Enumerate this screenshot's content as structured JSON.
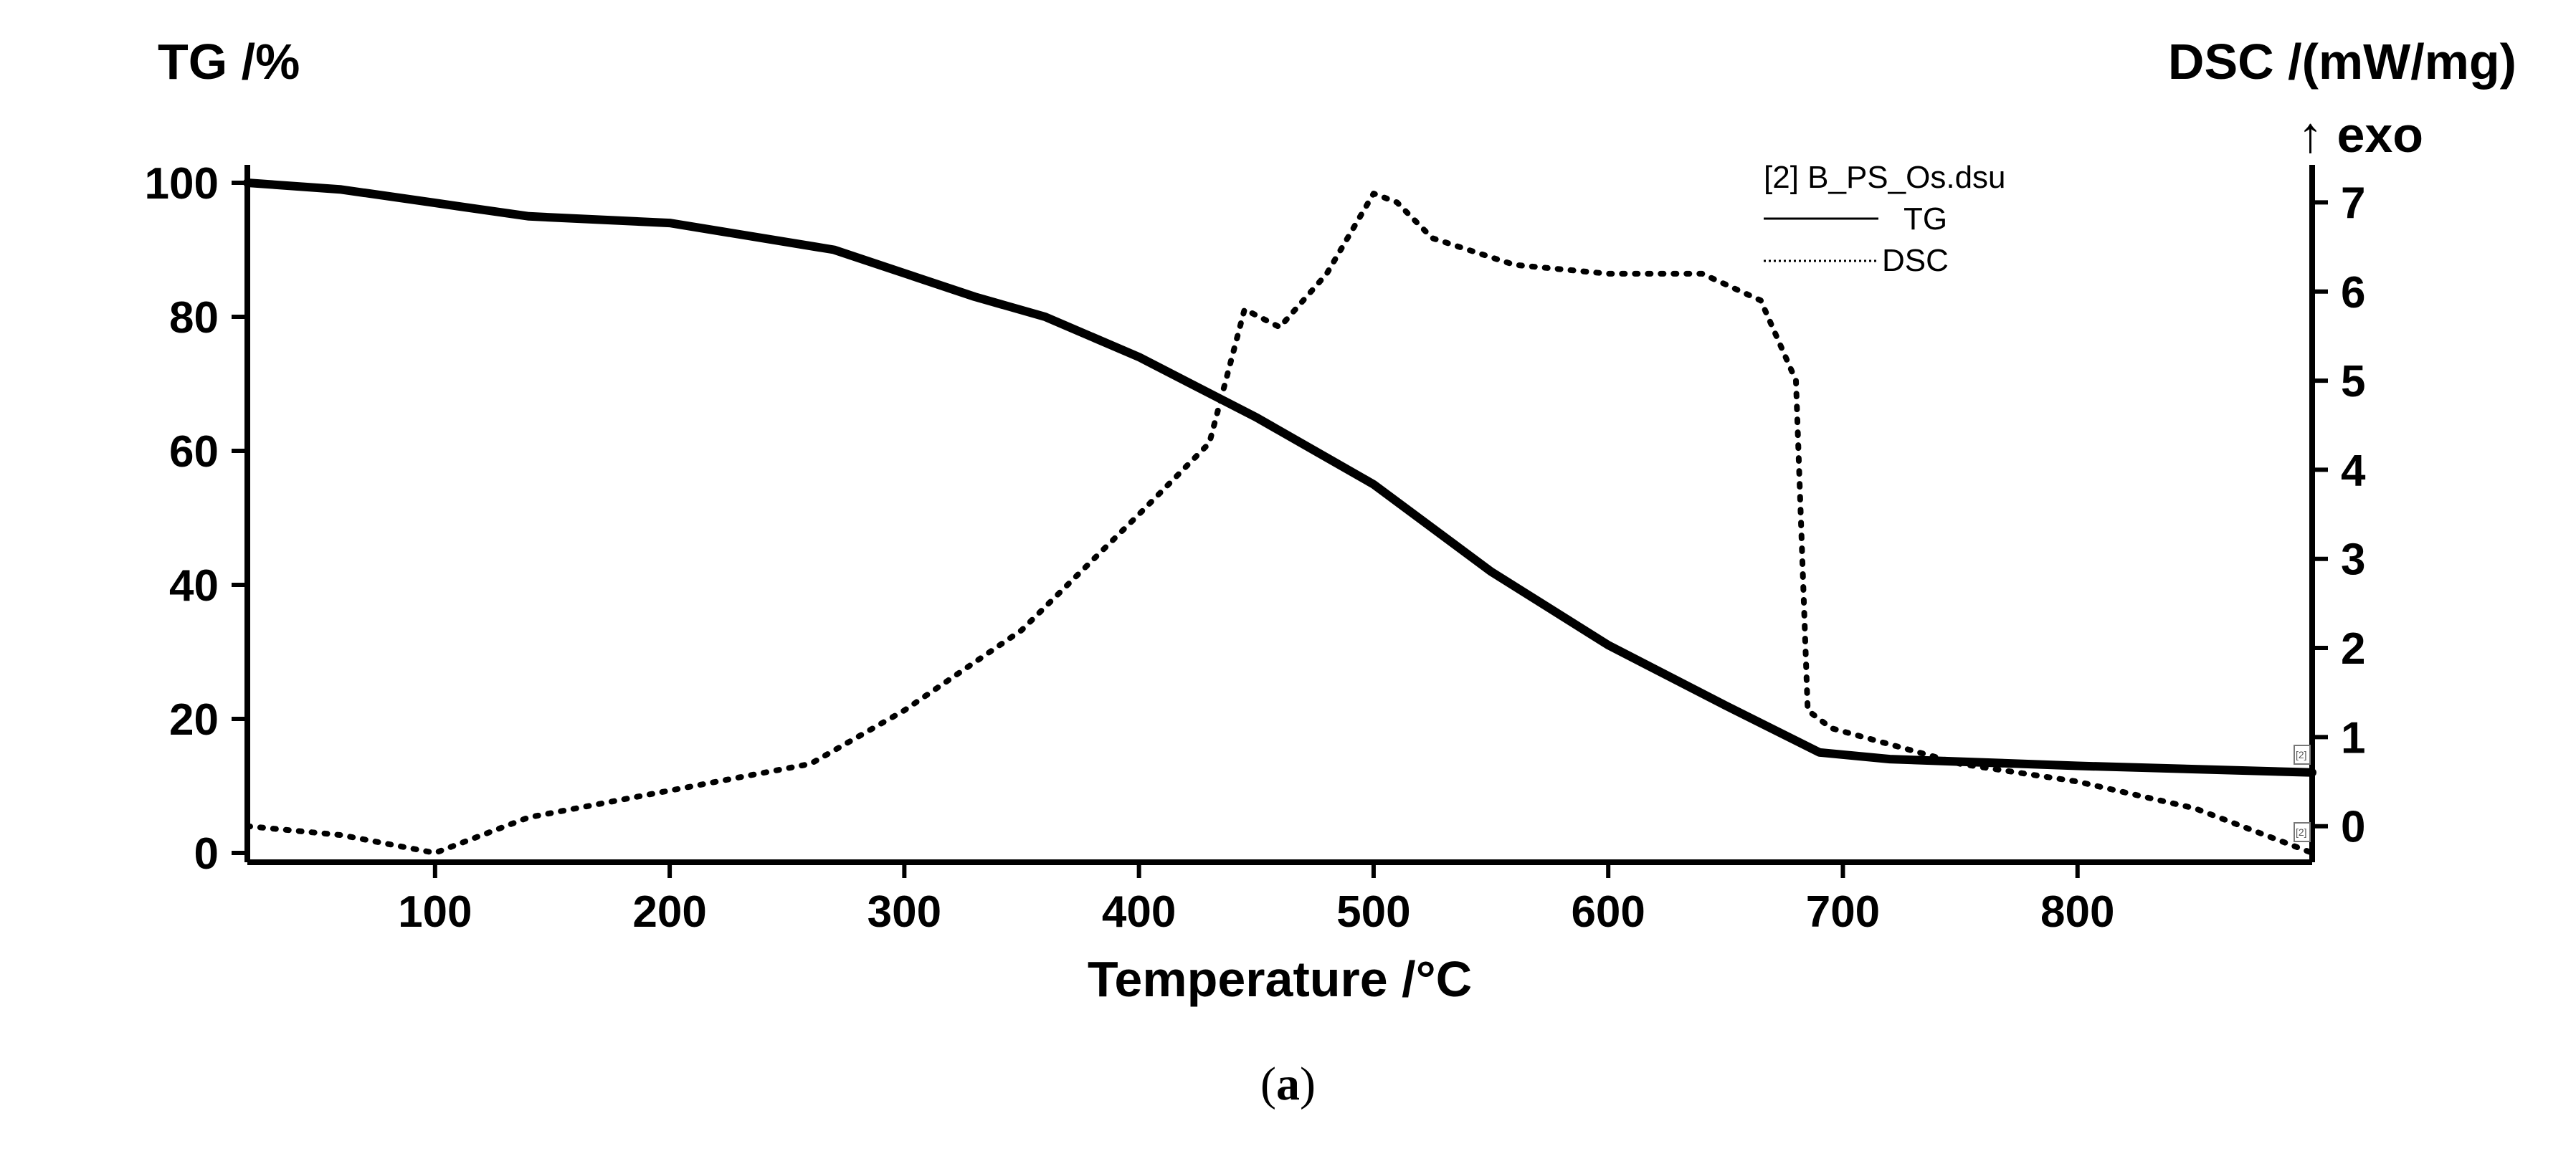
{
  "chart_data": {
    "type": "line",
    "title": "",
    "xlabel": "Temperature /°C",
    "ylabel_left": "TG /%",
    "ylabel_right": "DSC /(mW/mg)",
    "right_axis_note": "↑ exo",
    "xlim": [
      20,
      900
    ],
    "ylim_left": [
      0,
      100
    ],
    "ylim_right": [
      -0.3,
      7.1
    ],
    "x_ticks": [
      100,
      200,
      300,
      400,
      500,
      600,
      700,
      800
    ],
    "y_left_ticks": [
      0,
      20,
      40,
      60,
      80,
      100
    ],
    "y_right_ticks": [
      0,
      1,
      2,
      3,
      4,
      5,
      6,
      7
    ],
    "legend": {
      "file": "[2] B_PS_Os.dsu",
      "entries": [
        "TG",
        "DSC"
      ]
    },
    "series": [
      {
        "name": "TG",
        "axis": "left",
        "style": "solid",
        "x": [
          20,
          60,
          100,
          140,
          200,
          270,
          330,
          360,
          400,
          450,
          500,
          550,
          600,
          650,
          690,
          720,
          800,
          900
        ],
        "y": [
          100,
          99,
          97,
          95,
          94,
          90,
          83,
          80,
          74,
          65,
          55,
          42,
          31,
          22,
          15,
          14,
          13,
          12
        ]
      },
      {
        "name": "DSC",
        "axis": "right",
        "style": "dotted",
        "x": [
          20,
          60,
          100,
          140,
          200,
          260,
          300,
          350,
          400,
          430,
          445,
          460,
          480,
          500,
          510,
          525,
          560,
          600,
          640,
          665,
          680,
          685,
          695,
          750,
          800,
          850,
          900
        ],
        "y": [
          0,
          -0.1,
          -0.3,
          0.1,
          0.4,
          0.7,
          1.3,
          2.2,
          3.5,
          4.3,
          5.8,
          5.6,
          6.2,
          7.1,
          7.0,
          6.6,
          6.3,
          6.2,
          6.2,
          5.9,
          5.0,
          1.3,
          1.1,
          0.7,
          0.5,
          0.2,
          -0.3
        ]
      }
    ],
    "grid": false
  },
  "caption": {
    "open": "(",
    "letter": "a",
    "close": ")"
  },
  "corner_marks": {
    "tg_end": "[2]",
    "dsc_end": "[2]"
  }
}
